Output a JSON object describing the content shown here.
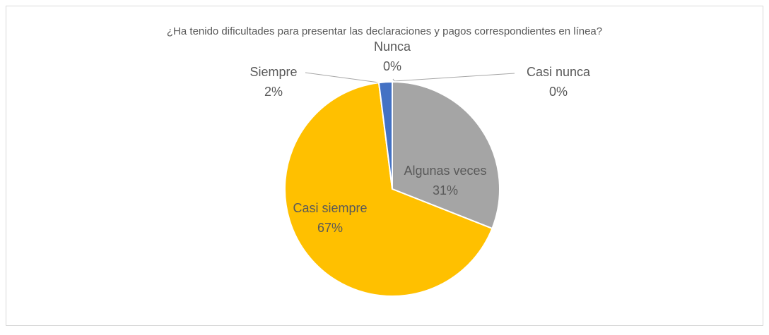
{
  "chart_data": {
    "type": "pie",
    "title": "¿Ha tenido dificultades para presentar las declaraciones y pagos correspondientes en línea?",
    "categories": [
      "Nunca",
      "Casi nunca",
      "Algunas veces",
      "Casi siempre",
      "Siempre"
    ],
    "values": [
      0,
      0,
      31,
      67,
      2
    ],
    "value_labels": [
      "0%",
      "0%",
      "31%",
      "67%",
      "2%"
    ],
    "colors": [
      "#4472c4",
      "#ed7d31",
      "#a5a5a5",
      "#ffc000",
      "#4472c4"
    ]
  }
}
